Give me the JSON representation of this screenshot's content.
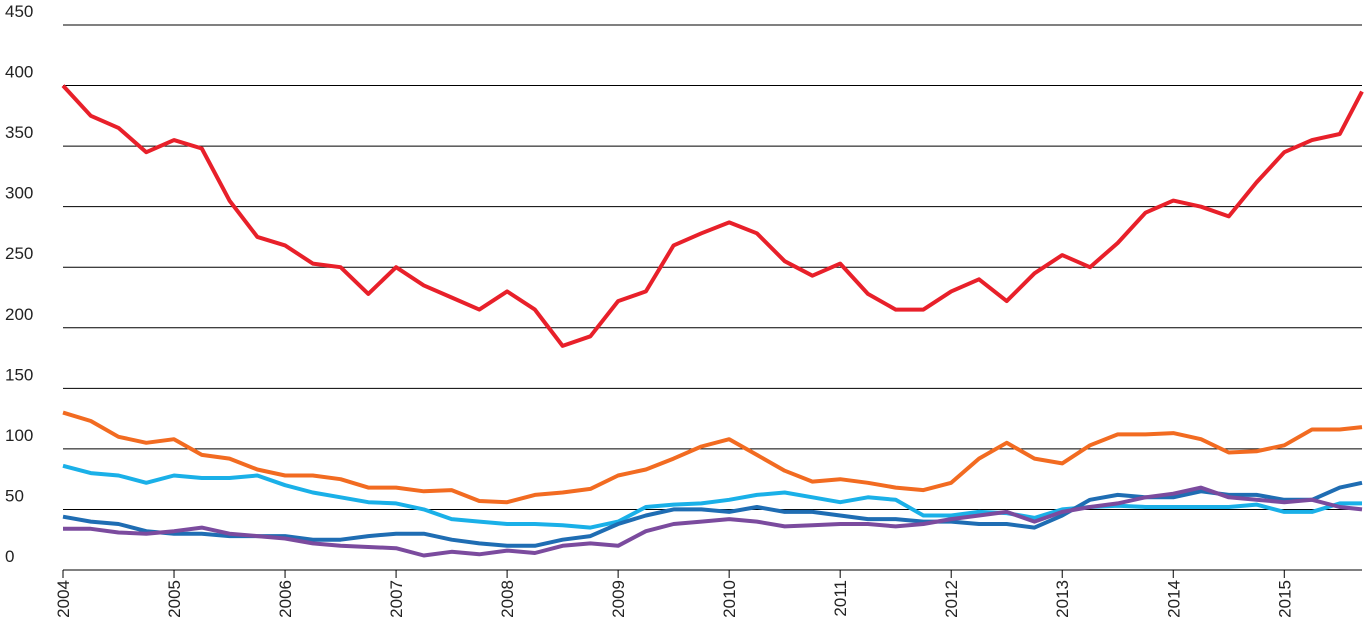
{
  "chart_data": {
    "type": "line",
    "x": [
      2004,
      2004.25,
      2004.5,
      2004.75,
      2005,
      2005.25,
      2005.5,
      2005.75,
      2006,
      2006.25,
      2006.5,
      2006.75,
      2007,
      2007.25,
      2007.5,
      2007.75,
      2008,
      2008.25,
      2008.5,
      2008.75,
      2009,
      2009.25,
      2009.5,
      2009.75,
      2010,
      2010.25,
      2010.5,
      2010.75,
      2011,
      2011.25,
      2011.5,
      2011.75,
      2012,
      2012.25,
      2012.5,
      2012.75,
      2013,
      2013.25,
      2013.5,
      2013.75,
      2014,
      2014.25,
      2014.5,
      2014.75,
      2015,
      2015.25,
      2015.5,
      2015.7
    ],
    "series": [
      {
        "color": "#e8202a",
        "values": [
          400,
          375,
          365,
          345,
          355,
          348,
          305,
          275,
          268,
          253,
          250,
          228,
          250,
          235,
          225,
          215,
          230,
          215,
          185,
          193,
          222,
          230,
          268,
          278,
          287,
          278,
          255,
          243,
          253,
          228,
          215,
          215,
          230,
          240,
          222,
          245,
          260,
          250,
          270,
          295,
          305,
          300,
          292,
          320,
          345,
          355,
          360,
          395
        ]
      },
      {
        "color": "#f26b21",
        "values": [
          130,
          123,
          110,
          105,
          108,
          95,
          92,
          83,
          78,
          78,
          75,
          68,
          68,
          65,
          66,
          57,
          56,
          62,
          64,
          67,
          78,
          83,
          92,
          102,
          108,
          95,
          82,
          73,
          75,
          72,
          68,
          66,
          72,
          92,
          105,
          92,
          88,
          103,
          112,
          112,
          113,
          108,
          97,
          98,
          103,
          116,
          116,
          118
        ]
      },
      {
        "color": "#1ab0e8",
        "values": [
          86,
          80,
          78,
          72,
          78,
          76,
          76,
          78,
          70,
          64,
          60,
          56,
          55,
          50,
          42,
          40,
          38,
          38,
          37,
          35,
          40,
          52,
          54,
          55,
          58,
          62,
          64,
          60,
          56,
          60,
          58,
          45,
          45,
          48,
          47,
          43,
          50,
          52,
          53,
          52,
          52,
          52,
          52,
          54,
          48,
          48,
          55,
          55
        ]
      },
      {
        "color": "#1f6db3",
        "values": [
          44,
          40,
          38,
          32,
          30,
          30,
          28,
          28,
          28,
          25,
          25,
          28,
          30,
          30,
          25,
          22,
          20,
          20,
          25,
          28,
          38,
          45,
          50,
          50,
          48,
          52,
          48,
          48,
          45,
          42,
          42,
          40,
          40,
          38,
          38,
          35,
          45,
          58,
          62,
          60,
          60,
          65,
          62,
          62,
          58,
          58,
          68,
          72
        ]
      },
      {
        "color": "#7b4b9e",
        "values": [
          34,
          34,
          31,
          30,
          32,
          35,
          30,
          28,
          26,
          22,
          20,
          19,
          18,
          12,
          15,
          13,
          16,
          14,
          20,
          22,
          20,
          32,
          38,
          40,
          42,
          40,
          36,
          37,
          38,
          38,
          36,
          38,
          42,
          45,
          48,
          40,
          48,
          52,
          55,
          60,
          63,
          68,
          60,
          58,
          56,
          58,
          52,
          50
        ]
      }
    ],
    "xlim": [
      2004,
      2015.7
    ],
    "xticks": [
      2004,
      2005,
      2006,
      2007,
      2008,
      2009,
      2010,
      2011,
      2012,
      2013,
      2014,
      2015
    ],
    "ylim": [
      0,
      450
    ],
    "yticks": [
      0,
      50,
      100,
      150,
      200,
      250,
      300,
      350,
      400,
      450
    ],
    "grid": true
  }
}
